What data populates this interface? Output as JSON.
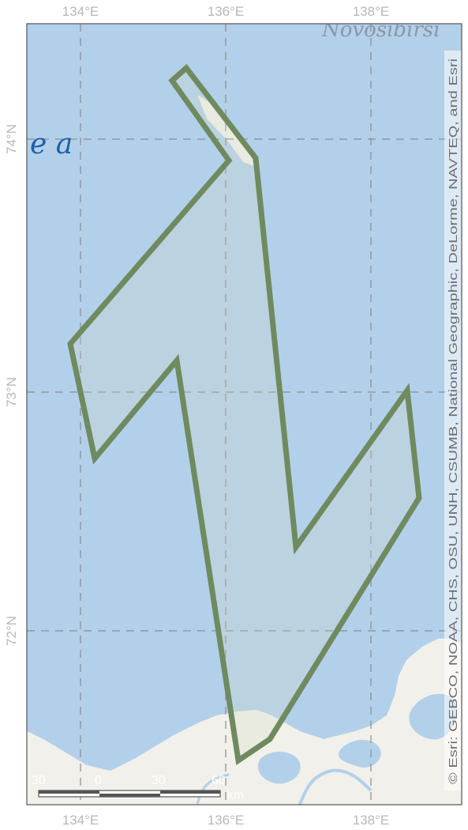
{
  "map": {
    "x_ticks": [
      "134°E",
      "136°E",
      "138°E"
    ],
    "y_ticks": [
      "74°N",
      "73°N",
      "72°N"
    ],
    "place_labels": {
      "sea_fragment": "e a",
      "islands_fragment": "Novosibirsi"
    },
    "scale_bar": {
      "labels": [
        "30",
        "0",
        "30",
        "60"
      ],
      "unit": "km"
    },
    "attribution": "© Esri: GEBCO, NOAA, CHS, OSU, UNH, CSUMB, National Geographic, DeLorme, NAVTEQ, and Esri",
    "colors": {
      "water": "#b3d0ea",
      "land": "#f1f0ea",
      "polygon_stroke": "#6f8a5e",
      "polygon_fill": "#d3d7c4",
      "grid": "#8c8c8c",
      "tick_text": "#b8b8b8",
      "sea_label": "#1f5fa8"
    },
    "survey_route_vertices": [
      [
        "135.6E",
        "74.27N"
      ],
      [
        "136.4E",
        "73.92N"
      ],
      [
        "137.05E",
        "72.35N"
      ],
      [
        "138.5E",
        "73.0N"
      ],
      [
        "138.65E",
        "72.58N"
      ],
      [
        "136.6E",
        "71.2N"
      ],
      [
        "136.2E",
        "71.12N"
      ],
      [
        "135.3E",
        "73.12N"
      ],
      [
        "134.2E",
        "72.68N"
      ],
      [
        "133.85E",
        "73.2N"
      ],
      [
        "136.05E",
        "73.9N"
      ],
      [
        "135.4E",
        "74.22N"
      ]
    ]
  }
}
